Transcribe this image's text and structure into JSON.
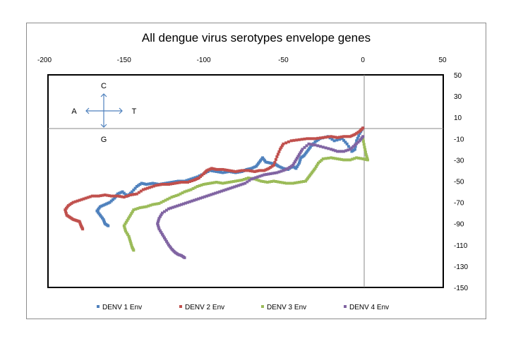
{
  "chart_data": {
    "type": "scatter",
    "title": "All dengue virus serotypes envelope genes",
    "xlim": [
      -200,
      50
    ],
    "ylim": [
      -150,
      50
    ],
    "x_ticks": [
      -200,
      -150,
      -100,
      -50,
      0,
      50
    ],
    "y_ticks": [
      50,
      30,
      10,
      -10,
      -30,
      -50,
      -70,
      -90,
      -110,
      -130,
      -150
    ],
    "x_tick_labels": [
      "-200",
      "-150",
      "-100",
      "-50",
      "0",
      "50"
    ],
    "y_tick_labels": [
      "50",
      "30",
      "10",
      "-10",
      "-30",
      "-50",
      "-70",
      "-90",
      "-110",
      "-130",
      "-150"
    ],
    "legend_position": "bottom",
    "direction_labels": {
      "up": "C",
      "down": "G",
      "left": "A",
      "right": "T"
    },
    "series": [
      {
        "name": "DENV 1 Env",
        "color": "#4f81bd",
        "points": [
          [
            0,
            0
          ],
          [
            -2,
            -5
          ],
          [
            -4,
            -12
          ],
          [
            -5,
            -20
          ],
          [
            -7,
            -22
          ],
          [
            -10,
            -15
          ],
          [
            -13,
            -10
          ],
          [
            -18,
            -12
          ],
          [
            -22,
            -8
          ],
          [
            -27,
            -10
          ],
          [
            -30,
            -13
          ],
          [
            -33,
            -18
          ],
          [
            -35,
            -22
          ],
          [
            -37,
            -26
          ],
          [
            -39,
            -28
          ],
          [
            -40,
            -33
          ],
          [
            -42,
            -38
          ],
          [
            -44,
            -36
          ],
          [
            -47,
            -39
          ],
          [
            -50,
            -38
          ],
          [
            -53,
            -36
          ],
          [
            -55,
            -34
          ],
          [
            -58,
            -33
          ],
          [
            -61,
            -32
          ],
          [
            -63,
            -28
          ],
          [
            -65,
            -32
          ],
          [
            -67,
            -36
          ],
          [
            -70,
            -38
          ],
          [
            -73,
            -39
          ],
          [
            -76,
            -41
          ],
          [
            -80,
            -42
          ],
          [
            -84,
            -41
          ],
          [
            -88,
            -42
          ],
          [
            -92,
            -41
          ],
          [
            -96,
            -40
          ],
          [
            -100,
            -43
          ],
          [
            -104,
            -46
          ],
          [
            -108,
            -48
          ],
          [
            -112,
            -50
          ],
          [
            -116,
            -50
          ],
          [
            -120,
            -51
          ],
          [
            -124,
            -52
          ],
          [
            -128,
            -53
          ],
          [
            -132,
            -52
          ],
          [
            -136,
            -53
          ],
          [
            -139,
            -52
          ],
          [
            -142,
            -55
          ],
          [
            -145,
            -60
          ],
          [
            -148,
            -64
          ],
          [
            -151,
            -60
          ],
          [
            -154,
            -62
          ],
          [
            -156,
            -66
          ],
          [
            -159,
            -70
          ],
          [
            -162,
            -72
          ],
          [
            -165,
            -74
          ],
          [
            -167,
            -78
          ],
          [
            -165,
            -82
          ],
          [
            -163,
            -86
          ],
          [
            -162,
            -90
          ],
          [
            -160,
            -92
          ]
        ]
      },
      {
        "name": "DENV 2 Env",
        "color": "#c0504d",
        "points": [
          [
            0,
            0
          ],
          [
            -2,
            -3
          ],
          [
            -5,
            -6
          ],
          [
            -8,
            -8
          ],
          [
            -12,
            -8
          ],
          [
            -16,
            -9
          ],
          [
            -20,
            -8
          ],
          [
            -25,
            -9
          ],
          [
            -30,
            -10
          ],
          [
            -35,
            -10
          ],
          [
            -40,
            -11
          ],
          [
            -45,
            -12
          ],
          [
            -50,
            -15
          ],
          [
            -52,
            -20
          ],
          [
            -54,
            -27
          ],
          [
            -56,
            -35
          ],
          [
            -59,
            -38
          ],
          [
            -62,
            -40
          ],
          [
            -65,
            -40
          ],
          [
            -68,
            -41
          ],
          [
            -72,
            -40
          ],
          [
            -76,
            -40
          ],
          [
            -80,
            -41
          ],
          [
            -84,
            -40
          ],
          [
            -88,
            -39
          ],
          [
            -92,
            -39
          ],
          [
            -95,
            -38
          ],
          [
            -98,
            -40
          ],
          [
            -100,
            -43
          ],
          [
            -103,
            -47
          ],
          [
            -106,
            -49
          ],
          [
            -110,
            -51
          ],
          [
            -114,
            -51
          ],
          [
            -118,
            -52
          ],
          [
            -122,
            -53
          ],
          [
            -126,
            -53
          ],
          [
            -130,
            -54
          ],
          [
            -134,
            -56
          ],
          [
            -138,
            -58
          ],
          [
            -142,
            -62
          ],
          [
            -146,
            -63
          ],
          [
            -150,
            -65
          ],
          [
            -154,
            -64
          ],
          [
            -158,
            -64
          ],
          [
            -162,
            -63
          ],
          [
            -166,
            -64
          ],
          [
            -170,
            -64
          ],
          [
            -174,
            -66
          ],
          [
            -178,
            -68
          ],
          [
            -182,
            -70
          ],
          [
            -185,
            -73
          ],
          [
            -187,
            -77
          ],
          [
            -186,
            -82
          ],
          [
            -184,
            -84
          ],
          [
            -182,
            -86
          ],
          [
            -180,
            -87
          ],
          [
            -178,
            -88
          ],
          [
            -177,
            -92
          ],
          [
            -176,
            -95
          ]
        ]
      },
      {
        "name": "DENV 3 Env",
        "color": "#9bbb59",
        "points": [
          [
            0,
            -10
          ],
          [
            1,
            -18
          ],
          [
            2,
            -25
          ],
          [
            3,
            -30
          ],
          [
            0,
            -29
          ],
          [
            -4,
            -28
          ],
          [
            -8,
            -30
          ],
          [
            -12,
            -30
          ],
          [
            -16,
            -29
          ],
          [
            -20,
            -28
          ],
          [
            -25,
            -29
          ],
          [
            -28,
            -33
          ],
          [
            -30,
            -38
          ],
          [
            -32,
            -42
          ],
          [
            -34,
            -46
          ],
          [
            -36,
            -50
          ],
          [
            -40,
            -51
          ],
          [
            -44,
            -52
          ],
          [
            -48,
            -52
          ],
          [
            -52,
            -51
          ],
          [
            -56,
            -50
          ],
          [
            -60,
            -51
          ],
          [
            -64,
            -50
          ],
          [
            -68,
            -48
          ],
          [
            -72,
            -47
          ],
          [
            -76,
            -49
          ],
          [
            -80,
            -50
          ],
          [
            -84,
            -51
          ],
          [
            -88,
            -52
          ],
          [
            -92,
            -51
          ],
          [
            -96,
            -52
          ],
          [
            -100,
            -53
          ],
          [
            -104,
            -55
          ],
          [
            -108,
            -58
          ],
          [
            -112,
            -60
          ],
          [
            -116,
            -63
          ],
          [
            -120,
            -65
          ],
          [
            -124,
            -68
          ],
          [
            -128,
            -71
          ],
          [
            -132,
            -72
          ],
          [
            -136,
            -74
          ],
          [
            -140,
            -75
          ],
          [
            -144,
            -77
          ],
          [
            -146,
            -82
          ],
          [
            -148,
            -87
          ],
          [
            -150,
            -92
          ],
          [
            -149,
            -97
          ],
          [
            -147,
            -102
          ],
          [
            -146,
            -107
          ],
          [
            -145,
            -112
          ],
          [
            -144,
            -115
          ]
        ]
      },
      {
        "name": "DENV 4 Env",
        "color": "#8064a2",
        "points": [
          [
            0,
            -8
          ],
          [
            -2,
            -12
          ],
          [
            -5,
            -16
          ],
          [
            -8,
            -20
          ],
          [
            -12,
            -22
          ],
          [
            -16,
            -22
          ],
          [
            -20,
            -20
          ],
          [
            -25,
            -18
          ],
          [
            -30,
            -16
          ],
          [
            -34,
            -15
          ],
          [
            -38,
            -20
          ],
          [
            -40,
            -25
          ],
          [
            -42,
            -30
          ],
          [
            -44,
            -35
          ],
          [
            -47,
            -38
          ],
          [
            -50,
            -40
          ],
          [
            -54,
            -42
          ],
          [
            -58,
            -43
          ],
          [
            -62,
            -44
          ],
          [
            -66,
            -46
          ],
          [
            -70,
            -48
          ],
          [
            -74,
            -52
          ],
          [
            -78,
            -54
          ],
          [
            -82,
            -56
          ],
          [
            -86,
            -58
          ],
          [
            -90,
            -60
          ],
          [
            -94,
            -62
          ],
          [
            -98,
            -64
          ],
          [
            -102,
            -66
          ],
          [
            -106,
            -68
          ],
          [
            -110,
            -70
          ],
          [
            -114,
            -72
          ],
          [
            -118,
            -74
          ],
          [
            -122,
            -76
          ],
          [
            -126,
            -80
          ],
          [
            -128,
            -85
          ],
          [
            -129,
            -90
          ],
          [
            -128,
            -95
          ],
          [
            -126,
            -100
          ],
          [
            -124,
            -105
          ],
          [
            -122,
            -110
          ],
          [
            -120,
            -114
          ],
          [
            -118,
            -117
          ],
          [
            -116,
            -119
          ],
          [
            -114,
            -120
          ],
          [
            -112,
            -122
          ]
        ]
      }
    ]
  }
}
